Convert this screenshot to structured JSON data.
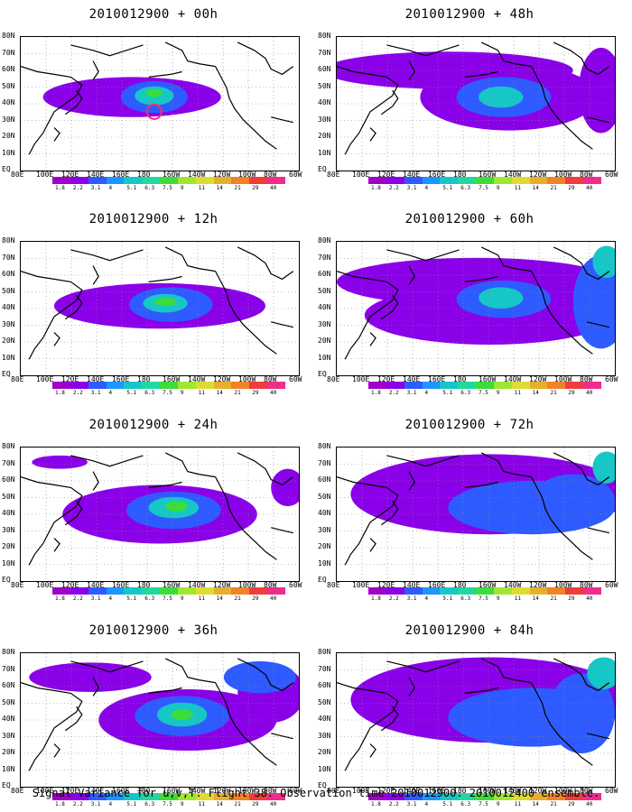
{
  "figure": {
    "caption": "Signal Variance for u,v,T. Flight 38. Observation time 2010012900. 2010012400 ensemble."
  },
  "panels": [
    {
      "title": "2010012900 + 00h",
      "col": 0,
      "row": 0,
      "blobs": [
        [
          0.4,
          0.45,
          0.32,
          0.15,
          "#8a00e8"
        ],
        [
          0.48,
          0.45,
          0.12,
          0.12,
          "#2e5bff"
        ],
        [
          0.48,
          0.44,
          0.07,
          0.07,
          "#16c7c7"
        ],
        [
          0.48,
          0.42,
          0.03,
          0.03,
          "#3cdc3c"
        ]
      ],
      "marker": true
    },
    {
      "title": "2010012900 + 12h",
      "col": 0,
      "row": 1,
      "blobs": [
        [
          0.5,
          0.48,
          0.38,
          0.17,
          "#8a00e8"
        ],
        [
          0.54,
          0.47,
          0.15,
          0.13,
          "#2e5bff"
        ],
        [
          0.52,
          0.46,
          0.08,
          0.07,
          "#16c7c7"
        ],
        [
          0.52,
          0.45,
          0.04,
          0.03,
          "#3cdc3c"
        ]
      ],
      "marker": false
    },
    {
      "title": "2010012900 + 24h",
      "col": 0,
      "row": 2,
      "blobs": [
        [
          0.14,
          0.11,
          0.1,
          0.05,
          "#8a00e8"
        ],
        [
          0.5,
          0.5,
          0.35,
          0.22,
          "#8a00e8"
        ],
        [
          0.55,
          0.47,
          0.17,
          0.14,
          "#2e5bff"
        ],
        [
          0.55,
          0.45,
          0.09,
          0.08,
          "#16c7c7"
        ],
        [
          0.56,
          0.44,
          0.04,
          0.04,
          "#3cdc3c"
        ],
        [
          0.96,
          0.3,
          0.06,
          0.14,
          "#8a00e8"
        ]
      ],
      "marker": false
    },
    {
      "title": "2010012900 + 36h",
      "col": 0,
      "row": 3,
      "blobs": [
        [
          0.25,
          0.18,
          0.22,
          0.11,
          "#8a00e8"
        ],
        [
          0.6,
          0.5,
          0.32,
          0.23,
          "#8a00e8"
        ],
        [
          0.58,
          0.47,
          0.17,
          0.15,
          "#2e5bff"
        ],
        [
          0.58,
          0.46,
          0.09,
          0.09,
          "#16c7c7"
        ],
        [
          0.58,
          0.46,
          0.04,
          0.04,
          "#3cdc3c"
        ],
        [
          0.9,
          0.3,
          0.12,
          0.22,
          "#8a00e8"
        ],
        [
          0.86,
          0.18,
          0.13,
          0.12,
          "#2e5bff"
        ]
      ],
      "marker": false
    },
    {
      "title": "2010012900 + 48h",
      "col": 1,
      "row": 0,
      "blobs": [
        [
          0.4,
          0.25,
          0.45,
          0.14,
          "#8a00e8"
        ],
        [
          0.62,
          0.45,
          0.32,
          0.25,
          "#8a00e8"
        ],
        [
          0.6,
          0.45,
          0.17,
          0.15,
          "#2e5bff"
        ],
        [
          0.59,
          0.45,
          0.08,
          0.08,
          "#16c7c7"
        ],
        [
          0.95,
          0.4,
          0.08,
          0.32,
          "#8a00e8"
        ]
      ],
      "marker": false
    },
    {
      "title": "2010012900 + 60h",
      "col": 1,
      "row": 1,
      "blobs": [
        [
          0.5,
          0.3,
          0.5,
          0.18,
          "#8a00e8"
        ],
        [
          0.55,
          0.55,
          0.45,
          0.22,
          "#8a00e8"
        ],
        [
          0.6,
          0.43,
          0.17,
          0.14,
          "#2e5bff"
        ],
        [
          0.59,
          0.42,
          0.08,
          0.08,
          "#16c7c7"
        ],
        [
          0.95,
          0.45,
          0.1,
          0.35,
          "#2e5bff"
        ],
        [
          0.97,
          0.15,
          0.05,
          0.12,
          "#16c7c7"
        ]
      ],
      "marker": false
    },
    {
      "title": "2010012900 + 72h",
      "col": 1,
      "row": 2,
      "blobs": [
        [
          0.55,
          0.35,
          0.5,
          0.3,
          "#8a00e8"
        ],
        [
          0.7,
          0.45,
          0.3,
          0.2,
          "#2e5bff"
        ],
        [
          0.85,
          0.4,
          0.15,
          0.2,
          "#2e5bff"
        ],
        [
          0.97,
          0.15,
          0.05,
          0.12,
          "#16c7c7"
        ]
      ],
      "marker": false
    },
    {
      "title": "2010012900 + 84h",
      "col": 1,
      "row": 3,
      "blobs": [
        [
          0.55,
          0.35,
          0.5,
          0.32,
          "#8a00e8"
        ],
        [
          0.7,
          0.48,
          0.3,
          0.22,
          "#2e5bff"
        ],
        [
          0.88,
          0.45,
          0.12,
          0.3,
          "#2e5bff"
        ],
        [
          0.96,
          0.15,
          0.06,
          0.12,
          "#16c7c7"
        ]
      ],
      "marker": false
    }
  ],
  "lat_labels": [
    "80N",
    "70N",
    "60N",
    "50N",
    "40N",
    "30N",
    "20N",
    "10N",
    "EQ"
  ],
  "lon_labels": [
    "80E",
    "100E",
    "120E",
    "140E",
    "160E",
    "180",
    "160W",
    "140W",
    "120W",
    "100W",
    "80W",
    "60W"
  ],
  "colorbar": {
    "colors": [
      "#a000c8",
      "#8a00e8",
      "#2e5bff",
      "#1e96ff",
      "#16c7c7",
      "#22d7a0",
      "#3cdc3c",
      "#a0e632",
      "#dcdc32",
      "#e6af2d",
      "#f08228",
      "#f03c3c",
      "#f02d8c"
    ],
    "labels": [
      "1.8",
      "2.2",
      "3.1",
      "4",
      "5.1",
      "6.3",
      "7.5",
      "9",
      "11",
      "14",
      "21",
      "29",
      "40"
    ]
  },
  "colors": {
    "land_outline": "#000000",
    "grid": "#888888",
    "marker": "#ff2a6a"
  }
}
